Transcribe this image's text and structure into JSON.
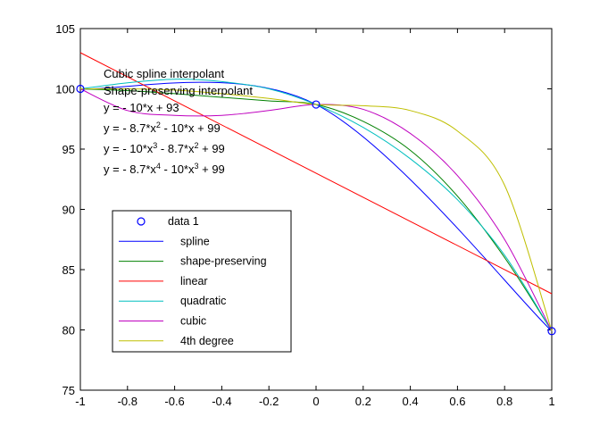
{
  "chart_data": {
    "type": "line",
    "title": "",
    "xlabel": "",
    "ylabel": "",
    "xlim": [
      -1,
      1
    ],
    "ylim": [
      75,
      105
    ],
    "x_ticks": [
      -1,
      -0.8,
      -0.6,
      -0.4,
      -0.2,
      0,
      0.2,
      0.4,
      0.6,
      0.8,
      1
    ],
    "x_tick_labels": [
      "-1",
      "-0.8",
      "-0.6",
      "-0.4",
      "-0.2",
      "0",
      "0.2",
      "0.4",
      "0.6",
      "0.8",
      "1"
    ],
    "y_ticks": [
      75,
      80,
      85,
      90,
      95,
      100,
      105
    ],
    "y_tick_labels": [
      "75",
      "80",
      "85",
      "90",
      "95",
      "100",
      "105"
    ],
    "grid": false,
    "legend_placement": "lower-left",
    "data_points": {
      "name": "data 1",
      "x": [
        -1,
        0,
        1
      ],
      "y": [
        100,
        98.7,
        79.9
      ],
      "color": "#0000ff"
    },
    "series": [
      {
        "name": "spline",
        "color": "#0000ff",
        "x": [
          -1,
          0,
          1
        ],
        "y": [
          100,
          98.7,
          79.9
        ]
      },
      {
        "name": "shape-preserving",
        "color": "#008000",
        "x": [
          -1,
          -0.8,
          -0.6,
          -0.4,
          -0.2,
          0,
          0.2,
          0.4,
          0.6,
          0.8,
          1
        ],
        "y": [
          100,
          99.85,
          99.6,
          99.3,
          99.0,
          98.7,
          97.3,
          94.9,
          91.1,
          86.0,
          79.9
        ]
      },
      {
        "name": "linear",
        "color": "#ff0000",
        "x": [
          -1,
          1
        ],
        "y": [
          103,
          83
        ]
      },
      {
        "name": "quadratic",
        "color": "#00bfbf",
        "x": [
          -1,
          -0.8,
          -0.6,
          -0.4,
          -0.2,
          0,
          0.2,
          0.4,
          0.6,
          0.8,
          1
        ],
        "y": [
          100,
          100.5,
          100.8,
          100.6,
          100.0,
          98.7,
          96.8,
          94.2,
          90.8,
          86.2,
          79.9
        ]
      },
      {
        "name": "cubic",
        "color": "#bf00bf",
        "x": [
          -1,
          -0.8,
          -0.6,
          -0.4,
          -0.2,
          0,
          0.2,
          0.4,
          0.6,
          0.8,
          1
        ],
        "y": [
          100,
          98.2,
          97.8,
          97.8,
          98.2,
          98.7,
          98.3,
          96.3,
          92.8,
          87.5,
          79.9
        ]
      },
      {
        "name": "4th degree",
        "color": "#bfbf00",
        "x": [
          -1,
          -0.8,
          -0.6,
          -0.4,
          -0.2,
          0,
          0.2,
          0.4,
          0.6,
          0.8,
          1
        ],
        "y": [
          100,
          100.0,
          99.9,
          99.6,
          99.2,
          98.7,
          98.6,
          98.2,
          96.5,
          92.0,
          79.9
        ]
      }
    ],
    "annotations": [
      "Cubic spline interpolant",
      "Shape-preserving interpolant",
      "y = - 10*x + 93",
      "y = - 8.7*x^2 - 10*x + 99",
      "y = - 10*x^3 - 8.7*x^2 + 99",
      "y = - 8.7*x^4 - 10*x^3 + 99"
    ],
    "legend": [
      "data 1",
      "spline",
      "shape-preserving",
      "linear",
      "quadratic",
      "cubic",
      "4th degree"
    ]
  }
}
